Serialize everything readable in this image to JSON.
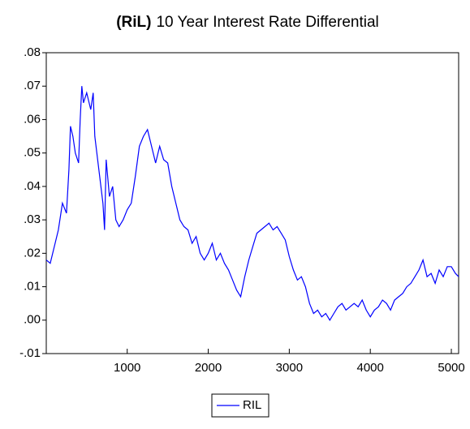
{
  "chart_data": {
    "type": "line",
    "title_prefix": "(RiL)",
    "title": "10 Year Interest Rate Differential",
    "x": [
      1,
      50,
      100,
      150,
      200,
      250,
      280,
      300,
      330,
      360,
      400,
      420,
      440,
      460,
      500,
      550,
      580,
      600,
      650,
      700,
      720,
      740,
      780,
      820,
      860,
      900,
      950,
      1000,
      1050,
      1100,
      1150,
      1200,
      1250,
      1300,
      1350,
      1400,
      1450,
      1500,
      1550,
      1600,
      1650,
      1700,
      1750,
      1800,
      1850,
      1900,
      1950,
      2000,
      2050,
      2100,
      2150,
      2200,
      2250,
      2300,
      2350,
      2400,
      2450,
      2500,
      2550,
      2600,
      2650,
      2700,
      2750,
      2800,
      2850,
      2900,
      2950,
      3000,
      3050,
      3100,
      3150,
      3200,
      3250,
      3300,
      3350,
      3400,
      3450,
      3500,
      3550,
      3600,
      3650,
      3700,
      3750,
      3800,
      3850,
      3900,
      3950,
      4000,
      4050,
      4100,
      4150,
      4200,
      4250,
      4300,
      4350,
      4400,
      4450,
      4500,
      4550,
      4600,
      4650,
      4700,
      4750,
      4800,
      4850,
      4900,
      4950,
      5000,
      5050,
      5090
    ],
    "series": [
      {
        "name": "RIL",
        "color": "#0000ff",
        "values": [
          0.018,
          0.017,
          0.022,
          0.027,
          0.035,
          0.032,
          0.045,
          0.058,
          0.055,
          0.05,
          0.047,
          0.06,
          0.07,
          0.065,
          0.068,
          0.063,
          0.068,
          0.055,
          0.045,
          0.035,
          0.027,
          0.048,
          0.037,
          0.04,
          0.03,
          0.028,
          0.03,
          0.033,
          0.035,
          0.043,
          0.052,
          0.055,
          0.057,
          0.052,
          0.047,
          0.052,
          0.048,
          0.047,
          0.04,
          0.035,
          0.03,
          0.028,
          0.027,
          0.023,
          0.025,
          0.02,
          0.018,
          0.02,
          0.023,
          0.018,
          0.02,
          0.017,
          0.015,
          0.012,
          0.009,
          0.007,
          0.013,
          0.018,
          0.022,
          0.026,
          0.027,
          0.028,
          0.029,
          0.027,
          0.028,
          0.026,
          0.024,
          0.019,
          0.015,
          0.012,
          0.013,
          0.01,
          0.005,
          0.002,
          0.003,
          0.001,
          0.002,
          0.0,
          0.002,
          0.004,
          0.005,
          0.003,
          0.004,
          0.005,
          0.004,
          0.006,
          0.003,
          0.001,
          0.003,
          0.004,
          0.006,
          0.005,
          0.003,
          0.006,
          0.007,
          0.008,
          0.01,
          0.011,
          0.013,
          0.015,
          0.018,
          0.013,
          0.014,
          0.011,
          0.015,
          0.013,
          0.016,
          0.016,
          0.014,
          0.013
        ]
      }
    ],
    "xlim": [
      1,
      5090
    ],
    "xticks": [
      1000,
      2000,
      3000,
      4000,
      5000
    ],
    "ylim": [
      -0.01,
      0.08
    ],
    "yticks": [
      {
        "value": -0.01,
        "label": "-.01"
      },
      {
        "value": 0.0,
        "label": ".00"
      },
      {
        "value": 0.01,
        "label": ".01"
      },
      {
        "value": 0.02,
        "label": ".02"
      },
      {
        "value": 0.03,
        "label": ".03"
      },
      {
        "value": 0.04,
        "label": ".04"
      },
      {
        "value": 0.05,
        "label": ".05"
      },
      {
        "value": 0.06,
        "label": ".06"
      },
      {
        "value": 0.07,
        "label": ".07"
      },
      {
        "value": 0.08,
        "label": ".08"
      }
    ],
    "grid": false,
    "legend": "bottom"
  }
}
